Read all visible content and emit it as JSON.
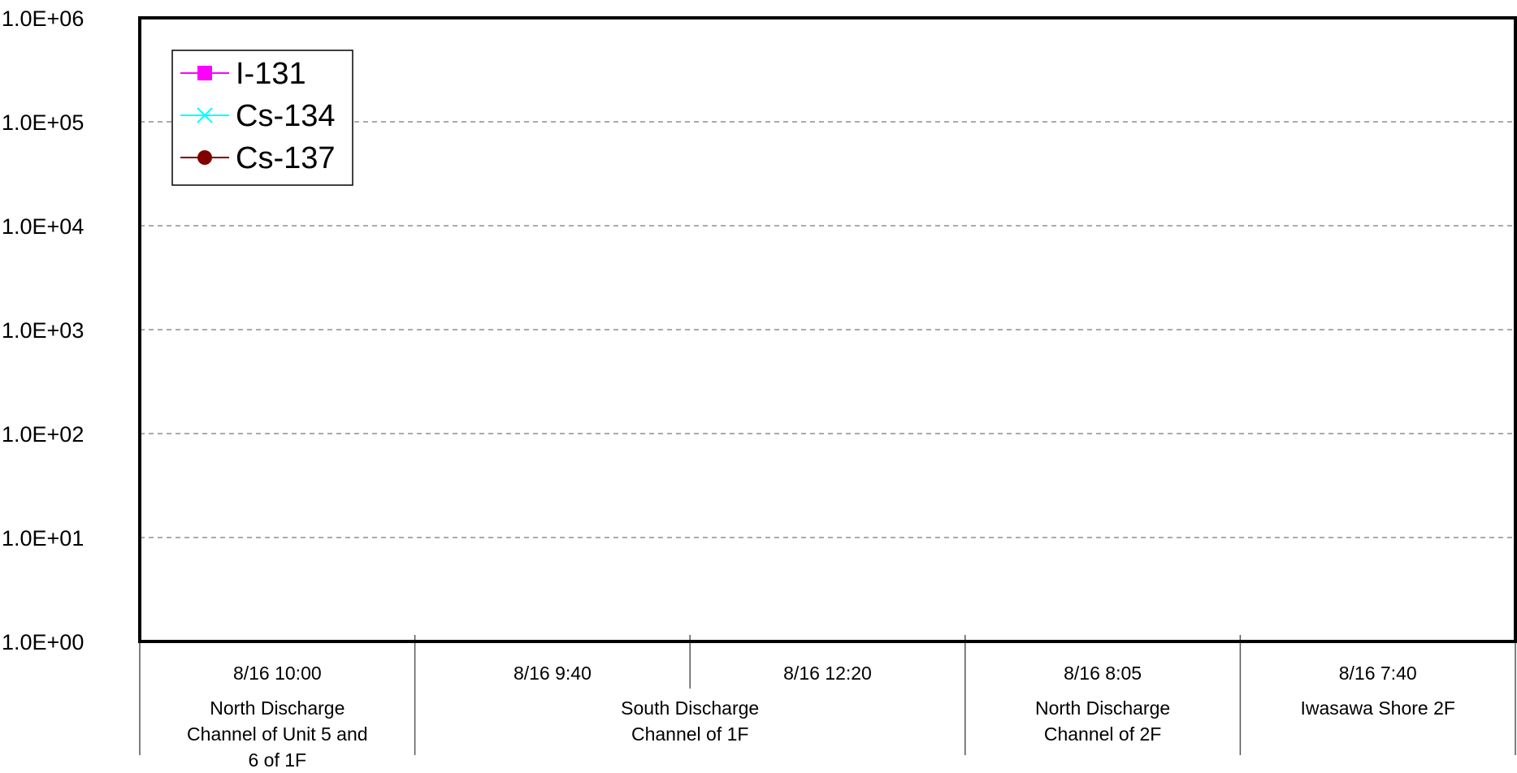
{
  "chart_data": {
    "type": "line",
    "title": "",
    "xlabel": "",
    "ylabel": "",
    "y_scale": "log",
    "ylim": [
      1,
      1000000
    ],
    "y_ticks": [
      "1.0E+00",
      "1.0E+01",
      "1.0E+02",
      "1.0E+03",
      "1.0E+04",
      "1.0E+05",
      "1.0E+06"
    ],
    "grid": "horizontal dashed",
    "legend_position": "top-left",
    "categories": [
      {
        "time": "8/16 10:00",
        "location": "North Discharge Channel of Unit 5 and 6 of 1F"
      },
      {
        "time": "8/16 9:40",
        "location": "South Discharge Channel of 1F"
      },
      {
        "time": "8/16 12:20",
        "location": "South Discharge Channel of 1F"
      },
      {
        "time": "8/16 8:05",
        "location": "North Discharge Channel of 2F"
      },
      {
        "time": "8/16 7:40",
        "location": "Iwasawa Shore 2F"
      }
    ],
    "location_groups": [
      {
        "lines": [
          "North Discharge",
          "Channel of Unit 5 and",
          "6 of 1F"
        ],
        "span": [
          0,
          0
        ]
      },
      {
        "lines": [
          "South Discharge",
          "Channel of 1F"
        ],
        "span": [
          1,
          2
        ]
      },
      {
        "lines": [
          "North Discharge",
          "Channel of 2F"
        ],
        "span": [
          3,
          3
        ]
      },
      {
        "lines": [
          "Iwasawa Shore 2F"
        ],
        "span": [
          4,
          4
        ]
      }
    ],
    "series": [
      {
        "name": "I-131",
        "color": "#ff00ff",
        "marker": "square",
        "values": [
          null,
          null,
          null,
          null,
          null
        ]
      },
      {
        "name": "Cs-134",
        "color": "#00ffff",
        "marker": "x",
        "values": [
          null,
          null,
          null,
          null,
          null
        ]
      },
      {
        "name": "Cs-137",
        "color": "#800000",
        "marker": "circle",
        "values": [
          null,
          null,
          null,
          null,
          null
        ]
      }
    ]
  }
}
